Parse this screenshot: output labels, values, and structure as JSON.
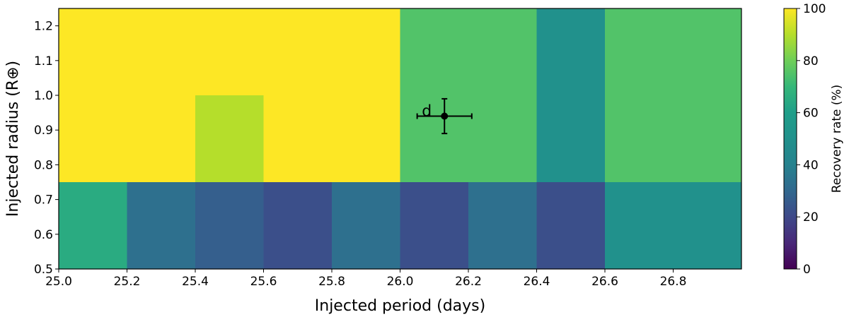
{
  "chart_data": {
    "type": "heatmap",
    "xlabel": "Injected period (days)",
    "ylabel": "Injected radius (R⊕)",
    "xlim": [
      25.0,
      27.0
    ],
    "ylim": [
      0.5,
      1.25
    ],
    "x_ticks": [
      "25.0",
      "25.2",
      "25.4",
      "25.6",
      "25.8",
      "26.0",
      "26.2",
      "26.4",
      "26.6",
      "26.8"
    ],
    "x_tick_values": [
      25.0,
      25.2,
      25.4,
      25.6,
      25.8,
      26.0,
      26.2,
      26.4,
      26.6,
      26.8
    ],
    "y_ticks": [
      "0.5",
      "0.6",
      "0.7",
      "0.8",
      "0.9",
      "1.0",
      "1.1",
      "1.2"
    ],
    "y_tick_values": [
      0.5,
      0.6,
      0.7,
      0.8,
      0.9,
      1.0,
      1.1,
      1.2
    ],
    "colormap": "viridis",
    "cells": [
      {
        "x0": 25.0,
        "x1": 25.2,
        "y0": 0.5,
        "y1": 0.75,
        "value": 65
      },
      {
        "x0": 25.2,
        "x1": 25.4,
        "y0": 0.5,
        "y1": 0.75,
        "value": 33
      },
      {
        "x0": 25.4,
        "x1": 25.6,
        "y0": 0.5,
        "y1": 0.75,
        "value": 27
      },
      {
        "x0": 25.6,
        "x1": 25.8,
        "y0": 0.5,
        "y1": 0.75,
        "value": 22
      },
      {
        "x0": 25.8,
        "x1": 26.0,
        "y0": 0.5,
        "y1": 0.75,
        "value": 33
      },
      {
        "x0": 26.0,
        "x1": 26.2,
        "y0": 0.5,
        "y1": 0.75,
        "value": 22
      },
      {
        "x0": 26.2,
        "x1": 26.4,
        "y0": 0.5,
        "y1": 0.75,
        "value": 33
      },
      {
        "x0": 26.4,
        "x1": 26.6,
        "y0": 0.5,
        "y1": 0.75,
        "value": 22
      },
      {
        "x0": 26.6,
        "x1": 27.0,
        "y0": 0.5,
        "y1": 0.75,
        "value": 50
      },
      {
        "x0": 25.0,
        "x1": 26.0,
        "y0": 0.75,
        "y1": 1.25,
        "value": 100
      },
      {
        "x0": 25.4,
        "x1": 25.6,
        "y0": 0.75,
        "y1": 1.0,
        "value": 90
      },
      {
        "x0": 26.0,
        "x1": 26.4,
        "y0": 0.75,
        "y1": 1.25,
        "value": 75
      },
      {
        "x0": 26.4,
        "x1": 26.6,
        "y0": 0.75,
        "y1": 1.25,
        "value": 50
      },
      {
        "x0": 26.6,
        "x1": 27.0,
        "y0": 0.75,
        "y1": 1.25,
        "value": 75
      }
    ],
    "point": {
      "label": "d",
      "x": 26.13,
      "y": 0.94,
      "xerr": 0.08,
      "yerr": 0.05
    },
    "colorbar": {
      "label": "Recovery rate (%)",
      "range": [
        0,
        100
      ],
      "ticks": [
        "0",
        "20",
        "40",
        "60",
        "80",
        "100"
      ],
      "tick_values": [
        0,
        20,
        40,
        60,
        80,
        100
      ]
    }
  }
}
